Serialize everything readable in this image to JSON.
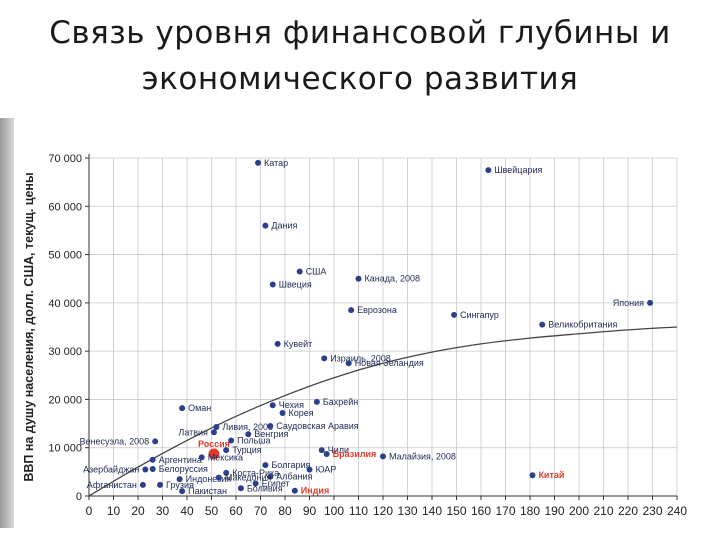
{
  "slide": {
    "title_line1": "Связь уровня финансовой глубины и",
    "title_line2": "экономического развития"
  },
  "chart_data": {
    "type": "scatter",
    "title": "Связь уровня финансовой глубины и экономического развития",
    "ylabel": "ВВП на душу населения, долл. США, текущ. цены",
    "xlabel": "",
    "xlim": [
      0,
      240
    ],
    "ylim": [
      0,
      70000
    ],
    "x_ticks": [
      0,
      10,
      20,
      30,
      40,
      50,
      60,
      70,
      80,
      90,
      100,
      110,
      120,
      130,
      140,
      150,
      160,
      170,
      180,
      190,
      200,
      210,
      220,
      230,
      240
    ],
    "y_ticks": [
      0,
      10000,
      20000,
      30000,
      40000,
      50000,
      60000,
      70000
    ],
    "y_tick_labels": [
      "0",
      "10 000",
      "20 000",
      "30 000",
      "40 000",
      "50 000",
      "60 000",
      "70 000"
    ],
    "grid": true,
    "colors": {
      "point": "#2b3f8c",
      "highlight": "#e03a2a",
      "grid": "#c8c8c8",
      "axis": "#333333",
      "trend": "#444444"
    },
    "trend": [
      [
        0,
        0
      ],
      [
        20,
        6000
      ],
      [
        40,
        11500
      ],
      [
        60,
        16500
      ],
      [
        80,
        20800
      ],
      [
        100,
        24500
      ],
      [
        120,
        27500
      ],
      [
        140,
        29800
      ],
      [
        160,
        31500
      ],
      [
        180,
        32700
      ],
      [
        200,
        33600
      ],
      [
        220,
        34400
      ],
      [
        240,
        35000
      ]
    ],
    "points": [
      {
        "label": "Катар",
        "x": 69,
        "y": 69000,
        "ha": "r"
      },
      {
        "label": "Швейцария",
        "x": 163,
        "y": 67500,
        "ha": "r"
      },
      {
        "label": "Дания",
        "x": 72,
        "y": 56000,
        "ha": "r"
      },
      {
        "label": "США",
        "x": 86,
        "y": 46500,
        "ha": "r"
      },
      {
        "label": "Канада, 2008",
        "x": 110,
        "y": 45000,
        "ha": "r"
      },
      {
        "label": "Швеция",
        "x": 75,
        "y": 43800,
        "ha": "r"
      },
      {
        "label": "Еврозона",
        "x": 107,
        "y": 38500,
        "ha": "r"
      },
      {
        "label": "Сингапур",
        "x": 149,
        "y": 37500,
        "ha": "r"
      },
      {
        "label": "Япония",
        "x": 229,
        "y": 40000,
        "ha": "l"
      },
      {
        "label": "Великобритания",
        "x": 185,
        "y": 35500,
        "ha": "r"
      },
      {
        "label": "Кувейт",
        "x": 77,
        "y": 31500,
        "ha": "r"
      },
      {
        "label": "Израиль, 2008",
        "x": 96,
        "y": 28500,
        "ha": "r"
      },
      {
        "label": "Новая Зеландия",
        "x": 106,
        "y": 27500,
        "ha": "r"
      },
      {
        "label": "Чехия",
        "x": 75,
        "y": 18800,
        "ha": "r"
      },
      {
        "label": "Бахрейн",
        "x": 93,
        "y": 19500,
        "ha": "r"
      },
      {
        "label": "Оман",
        "x": 38,
        "y": 18200,
        "ha": "r"
      },
      {
        "label": "Корея",
        "x": 79,
        "y": 17200,
        "ha": "r"
      },
      {
        "label": "Ливия, 2008",
        "x": 52,
        "y": 14300,
        "ha": "r"
      },
      {
        "label": "Саудовская Аравия",
        "x": 74,
        "y": 14500,
        "ha": "r"
      },
      {
        "label": "Латвия",
        "x": 51,
        "y": 13200,
        "ha": "l"
      },
      {
        "label": "Венгрия",
        "x": 65,
        "y": 12800,
        "ha": "r"
      },
      {
        "label": "Венесуэла, 2008",
        "x": 27,
        "y": 11300,
        "ha": "l"
      },
      {
        "label": "Польша",
        "x": 58,
        "y": 11500,
        "ha": "r"
      },
      {
        "label": "Чили",
        "x": 95,
        "y": 9500,
        "ha": "r"
      },
      {
        "label": "Малайзия, 2008",
        "x": 120,
        "y": 8200,
        "ha": "r"
      },
      {
        "label": "Россия",
        "x": 51,
        "y": 8700,
        "ha": "c",
        "highlight": true
      },
      {
        "label": "Турция",
        "x": 56,
        "y": 9500,
        "ha": "r"
      },
      {
        "label": "Аргентина",
        "x": 26,
        "y": 7500,
        "ha": "r"
      },
      {
        "label": "Мексика",
        "x": 46,
        "y": 8000,
        "ha": "r"
      },
      {
        "label": "Бразилия",
        "x": 97,
        "y": 8700,
        "ha": "r",
        "highlight": true
      },
      {
        "label": "Болгария",
        "x": 72,
        "y": 6400,
        "ha": "r"
      },
      {
        "label": "Белоруссия",
        "x": 26,
        "y": 5600,
        "ha": "r"
      },
      {
        "label": "Азербайджан",
        "x": 23,
        "y": 5500,
        "ha": "l"
      },
      {
        "label": "Индонезия",
        "x": 37,
        "y": 3500,
        "ha": "r"
      },
      {
        "label": "Коста-Рика",
        "x": 56,
        "y": 4800,
        "ha": "r"
      },
      {
        "label": "Албания",
        "x": 74,
        "y": 4000,
        "ha": "r"
      },
      {
        "label": "ЮАР",
        "x": 90,
        "y": 5500,
        "ha": "r"
      },
      {
        "label": "Македония",
        "x": 53,
        "y": 3800,
        "ha": "r"
      },
      {
        "label": "Египет",
        "x": 68,
        "y": 2600,
        "ha": "r"
      },
      {
        "label": "Афганистан",
        "x": 22,
        "y": 2300,
        "ha": "l"
      },
      {
        "label": "Грузия",
        "x": 29,
        "y": 2300,
        "ha": "r"
      },
      {
        "label": "Боливия",
        "x": 62,
        "y": 1600,
        "ha": "r"
      },
      {
        "label": "Пакистан",
        "x": 38,
        "y": 1000,
        "ha": "r"
      },
      {
        "label": "Индия",
        "x": 84,
        "y": 1100,
        "ha": "r",
        "highlight": true
      },
      {
        "label": "Китай",
        "x": 181,
        "y": 4300,
        "ha": "r",
        "highlight": true
      }
    ]
  }
}
